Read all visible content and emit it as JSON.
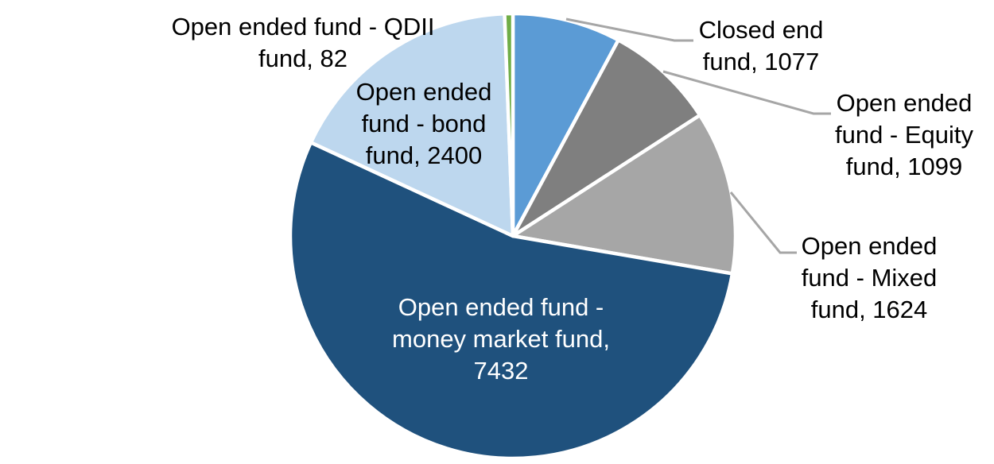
{
  "chart_data": {
    "type": "pie",
    "title": "",
    "direction": "clockwise",
    "start_angle_deg": 0,
    "total": 13714,
    "label_format": "{label}, {value}",
    "slice_border_color": "#FFFFFF",
    "leader_line_color": "#A6A6A6",
    "background_color": "#FFFFFF",
    "text_color": "#000000",
    "slices": [
      {
        "label": "Closed end fund",
        "value": 1077,
        "color": "#5B9BD5",
        "label_placement": "outside-leader"
      },
      {
        "label": "Open ended fund - Equity fund",
        "value": 1099,
        "color": "#7F7F7F",
        "label_placement": "outside-leader"
      },
      {
        "label": "Open ended fund - Mixed fund",
        "value": 1624,
        "color": "#A6A6A6",
        "label_placement": "outside-leader"
      },
      {
        "label": "Open ended fund - money market fund",
        "value": 7432,
        "color": "#1F517D",
        "label_placement": "inside"
      },
      {
        "label": "Open ended fund - bond fund",
        "value": 2400,
        "color": "#BDD7EE",
        "label_placement": "inside"
      },
      {
        "label": "Open ended fund - QDII fund",
        "value": 82,
        "color": "#70AD47",
        "label_placement": "outside"
      }
    ]
  },
  "callouts": {
    "qdii": {
      "lines": [
        "Open ended fund - QDII",
        "fund, 82"
      ]
    },
    "bond": {
      "lines": [
        "Open ended",
        "fund - bond",
        "fund, 2400"
      ]
    },
    "closed": {
      "lines": [
        "Closed end",
        "fund, 1077"
      ]
    },
    "equity": {
      "lines": [
        "Open ended",
        "fund - Equity",
        "fund, 1099"
      ]
    },
    "mixed": {
      "lines": [
        "Open ended",
        "fund - Mixed",
        "fund, 1624"
      ]
    },
    "money": {
      "lines": [
        "Open ended fund -",
        "money market fund,",
        "7432"
      ]
    }
  }
}
